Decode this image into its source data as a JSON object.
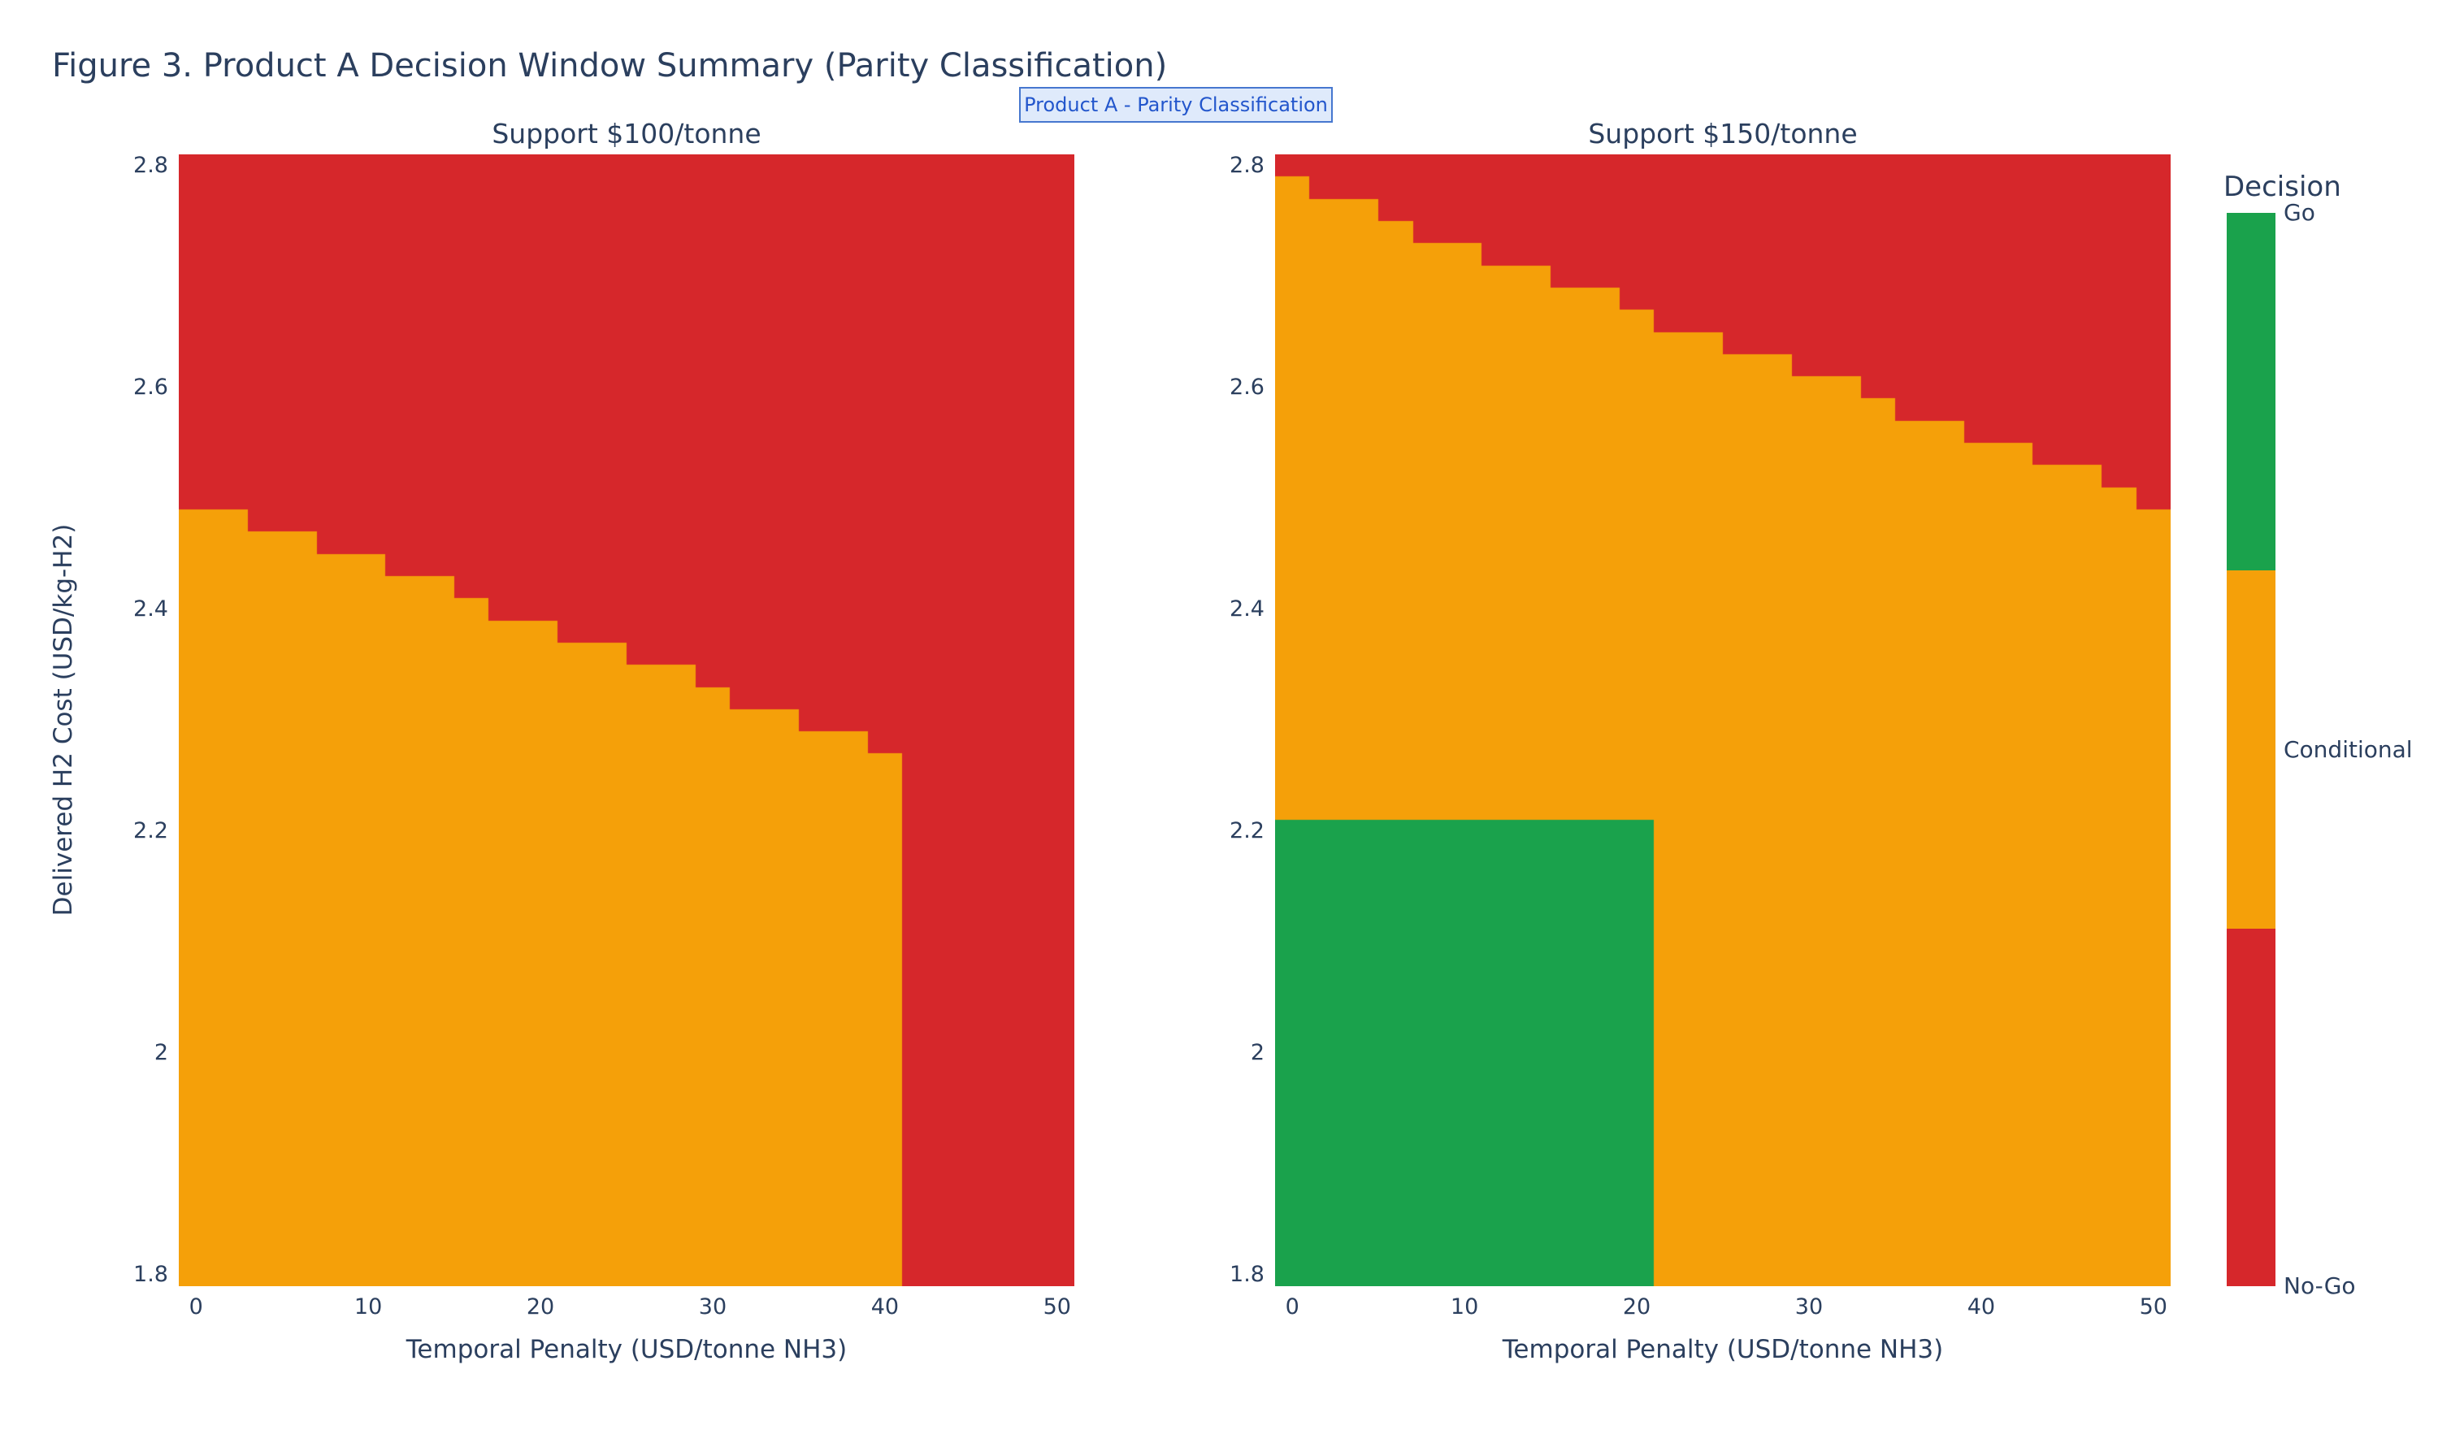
{
  "figure": {
    "title": "Figure 3. Product A Decision Window Summary (Parity Classification)",
    "annotation": "Product A - Parity Classification"
  },
  "colors": {
    "go": "#1aa24c",
    "conditional": "#f5a009",
    "nogo": "#d6272b",
    "text": "#2b3f5e",
    "annotation_text": "#2356cc",
    "annotation_bg": "#dfeafb",
    "annotation_border": "#4677cf",
    "background": "#ffffff"
  },
  "colorbar": {
    "title": "Decision",
    "labels": [
      "Go",
      "Conditional",
      "No-Go"
    ],
    "segment_colors": [
      "go",
      "conditional",
      "nogo"
    ],
    "position": "right"
  },
  "chart_data": [
    {
      "type": "heatmap",
      "subplot_title": "Support $100/tonne",
      "xlabel": "Temporal Penalty (USD/tonne NH3)",
      "ylabel": "Delivered H2 Cost (USD/kg-H2)",
      "x_ticks": [
        "0",
        "10",
        "20",
        "30",
        "40",
        "50"
      ],
      "y_ticks": [
        "2.8",
        "2.6",
        "2.4",
        "2.2",
        "2",
        "1.8"
      ],
      "x_values": [
        0,
        2,
        4,
        6,
        8,
        10,
        12,
        14,
        16,
        18,
        20,
        22,
        24,
        26,
        28,
        30,
        32,
        34,
        36,
        38,
        40,
        42,
        44,
        46,
        48,
        50
      ],
      "y_grid": {
        "min": 1.8,
        "max": 2.8,
        "step": 0.02,
        "count": 51
      },
      "x_range_edges": [
        -1,
        51
      ],
      "y_range_edges": [
        1.79,
        2.81
      ],
      "classes": [
        "Go",
        "Conditional",
        "No-Go"
      ],
      "go_region": null,
      "nogo_penalty_cutoff": 41,
      "conditional_max_h2cost_by_penalty": [
        2.48,
        2.48,
        2.46,
        2.46,
        2.44,
        2.44,
        2.42,
        2.42,
        2.4,
        2.38,
        2.38,
        2.36,
        2.36,
        2.34,
        2.34,
        2.32,
        2.3,
        2.3,
        2.28,
        2.28,
        2.26,
        null,
        null,
        null,
        null,
        null
      ]
    },
    {
      "type": "heatmap",
      "subplot_title": "Support $150/tonne",
      "xlabel": "Temporal Penalty (USD/tonne NH3)",
      "ylabel": "Delivered H2 Cost (USD/kg-H2)",
      "x_ticks": [
        "0",
        "10",
        "20",
        "30",
        "40",
        "50"
      ],
      "y_ticks": [
        "2.8",
        "2.6",
        "2.4",
        "2.2",
        "2",
        "1.8"
      ],
      "x_values": [
        0,
        2,
        4,
        6,
        8,
        10,
        12,
        14,
        16,
        18,
        20,
        22,
        24,
        26,
        28,
        30,
        32,
        34,
        36,
        38,
        40,
        42,
        44,
        46,
        48,
        50
      ],
      "y_grid": {
        "min": 1.8,
        "max": 2.8,
        "step": 0.02,
        "count": 51
      },
      "x_range_edges": [
        -1,
        51
      ],
      "y_range_edges": [
        1.79,
        2.81
      ],
      "classes": [
        "Go",
        "Conditional",
        "No-Go"
      ],
      "go_region": {
        "penalty_max_edge": 21,
        "h2cost_max_edge": 2.21
      },
      "nogo_penalty_cutoff": null,
      "conditional_max_h2cost_by_penalty": [
        2.78,
        2.76,
        2.76,
        2.74,
        2.72,
        2.72,
        2.7,
        2.7,
        2.68,
        2.68,
        2.66,
        2.64,
        2.64,
        2.62,
        2.62,
        2.6,
        2.6,
        2.58,
        2.56,
        2.56,
        2.54,
        2.54,
        2.52,
        2.52,
        2.5,
        2.48
      ]
    }
  ]
}
